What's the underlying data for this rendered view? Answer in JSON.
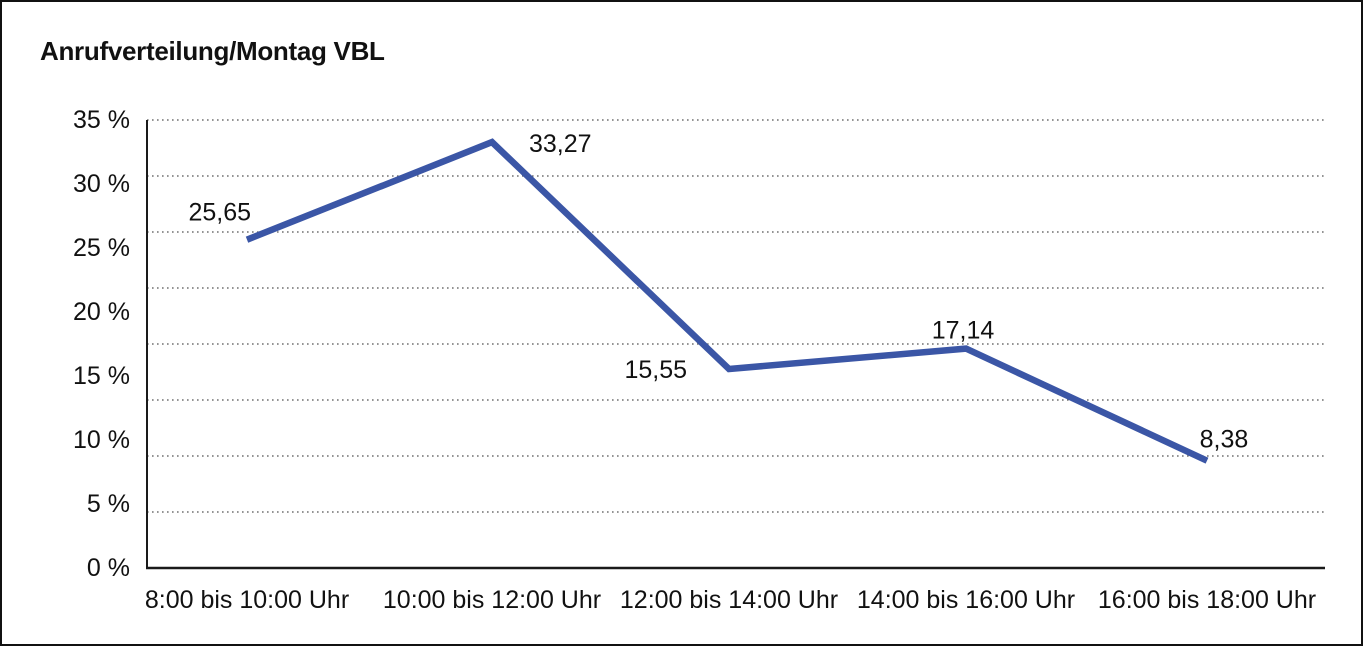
{
  "chart_data": {
    "type": "line",
    "title": "Anrufverteilung/Montag VBL",
    "categories": [
      "8:00 bis 10:00 Uhr",
      "10:00 bis 12:00 Uhr",
      "12:00 bis 14:00 Uhr",
      "14:00 bis 16:00 Uhr",
      "16:00 bis 18:00 Uhr"
    ],
    "values": [
      25.65,
      33.27,
      15.55,
      17.14,
      8.38
    ],
    "point_labels": [
      "25,65",
      "33,27",
      "15,55",
      "17,14",
      "8,38"
    ],
    "xlabel": "",
    "ylabel": "",
    "ylim": [
      0,
      35
    ],
    "ytick_step": 5,
    "ytick_labels": [
      "0 %",
      "5 %",
      "10 %",
      "15 %",
      "20 %",
      "25 %",
      "30 %",
      "35 %"
    ],
    "grid": "dotted-horizontal",
    "grid_divisions": 8,
    "legend_position": "none",
    "line_color": "#3B56A6",
    "axis_color": "#1a1a1a",
    "background_color": "#ffffff"
  }
}
